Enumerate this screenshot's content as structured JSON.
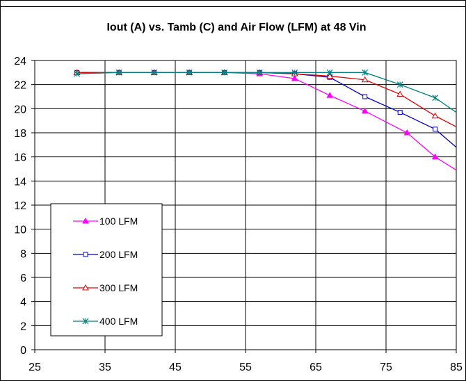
{
  "chart_data": {
    "type": "line",
    "title": "Iout (A) vs. Tamb (C) and Air Flow (LFM) at 48 Vin",
    "xlabel": "",
    "ylabel": "",
    "xlim": [
      25,
      85
    ],
    "ylim": [
      0,
      24
    ],
    "xticks": [
      25,
      35,
      45,
      55,
      65,
      75,
      85
    ],
    "yticks": [
      0,
      2,
      4,
      6,
      8,
      10,
      12,
      14,
      16,
      18,
      20,
      22,
      24
    ],
    "grid": true,
    "legend_position": "bottom-left",
    "series": [
      {
        "name": "100 LFM",
        "color": "#ff00ff",
        "marker": "triangle-filled",
        "x": [
          31,
          37,
          42,
          47,
          52,
          57,
          62,
          67,
          72,
          78,
          82,
          85
        ],
        "y": [
          23,
          23,
          23,
          23,
          23,
          22.9,
          22.5,
          21.1,
          19.8,
          18.0,
          16.0,
          14.9
        ]
      },
      {
        "name": "200 LFM",
        "color": "#0000cc",
        "marker": "square-open",
        "x": [
          31,
          37,
          42,
          47,
          52,
          57,
          62,
          67,
          72,
          77,
          82,
          85
        ],
        "y": [
          23,
          23,
          23,
          23,
          23,
          23,
          22.9,
          22.6,
          21.0,
          19.7,
          18.3,
          16.8
        ]
      },
      {
        "name": "300 LFM",
        "color": "#dd0000",
        "marker": "triangle-open",
        "x": [
          31,
          37,
          42,
          47,
          52,
          57,
          62,
          67,
          72,
          77,
          82,
          85
        ],
        "y": [
          23,
          23,
          23,
          23,
          23,
          23,
          22.9,
          22.7,
          22.4,
          21.2,
          19.4,
          18.5
        ]
      },
      {
        "name": "400 LFM",
        "color": "#008080",
        "marker": "asterisk",
        "x": [
          31,
          37,
          42,
          47,
          52,
          57,
          62,
          67,
          72,
          77,
          82,
          85
        ],
        "y": [
          22.9,
          23,
          23,
          23,
          23,
          23,
          23,
          23,
          23,
          22.0,
          20.9,
          19.7
        ]
      }
    ]
  }
}
